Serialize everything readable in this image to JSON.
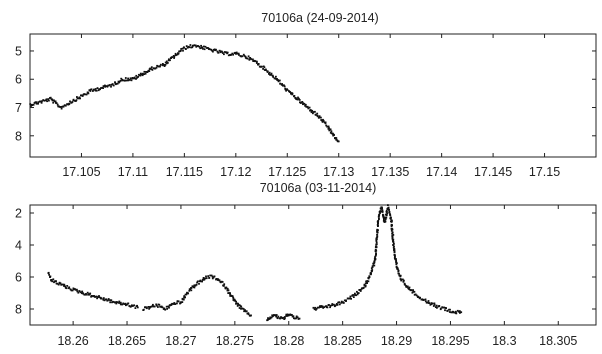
{
  "chart_data": [
    {
      "type": "scatter",
      "title": "70106a (24-09-2014)",
      "xlabel": "",
      "ylabel": "",
      "xlim": [
        17.1,
        17.155
      ],
      "ylim": [
        4.4,
        8.75
      ],
      "y_inverted": true,
      "x_ticks": [
        "17.105",
        "17.11",
        "17.115",
        "17.12",
        "17.125",
        "17.13",
        "17.135",
        "17.14",
        "17.145",
        "17.15"
      ],
      "x_tick_values": [
        17.105,
        17.11,
        17.115,
        17.12,
        17.125,
        17.13,
        17.135,
        17.14,
        17.145,
        17.15
      ],
      "y_ticks": [
        "5",
        "6",
        "7",
        "8"
      ],
      "y_tick_values": [
        5,
        6,
        7,
        8
      ],
      "grid": false,
      "marker_color": "#111111",
      "series": [
        {
          "x": [
            17.1,
            17.101,
            17.102,
            17.103,
            17.104,
            17.105,
            17.106,
            17.107,
            17.108,
            17.109,
            17.11,
            17.111,
            17.112,
            17.113,
            17.114,
            17.115,
            17.116,
            17.117,
            17.118,
            17.119,
            17.12,
            17.121,
            17.122,
            17.123,
            17.124,
            17.125,
            17.126,
            17.127,
            17.128,
            17.129,
            17.1295,
            17.13
          ],
          "y": [
            6.9,
            6.8,
            6.7,
            7.0,
            6.8,
            6.6,
            6.4,
            6.3,
            6.2,
            6.0,
            6.0,
            5.8,
            5.6,
            5.5,
            5.2,
            4.9,
            4.8,
            4.9,
            5.0,
            5.1,
            5.1,
            5.2,
            5.4,
            5.7,
            6.0,
            6.4,
            6.7,
            7.0,
            7.3,
            7.7,
            8.0,
            8.2
          ]
        }
      ]
    },
    {
      "type": "scatter",
      "title": "70106a (03-11-2014)",
      "xlabel": "",
      "ylabel": "",
      "xlim": [
        18.256,
        18.3085
      ],
      "ylim": [
        1.5,
        9.0
      ],
      "y_inverted": true,
      "x_ticks": [
        "18.26",
        "18.265",
        "18.27",
        "18.275",
        "18.28",
        "18.285",
        "18.29",
        "18.295",
        "18.3",
        "18.305"
      ],
      "x_tick_values": [
        18.26,
        18.265,
        18.27,
        18.275,
        18.28,
        18.285,
        18.29,
        18.295,
        18.3,
        18.305
      ],
      "y_ticks": [
        "2",
        "4",
        "6",
        "8"
      ],
      "y_tick_values": [
        2,
        4,
        6,
        8
      ],
      "grid": false,
      "marker_color": "#111111",
      "series": [
        {
          "x": [
            18.2577,
            18.258,
            18.259,
            18.26,
            18.261,
            18.262,
            18.263,
            18.264,
            18.265,
            18.266
          ],
          "y": [
            5.8,
            6.2,
            6.5,
            6.8,
            7.0,
            7.2,
            7.4,
            7.6,
            7.7,
            7.9
          ]
        },
        {
          "x": [
            18.2665,
            18.267,
            18.2675,
            18.268,
            18.2685,
            18.269,
            18.2695,
            18.27,
            18.2705,
            18.271,
            18.2715,
            18.272,
            18.2725,
            18.273,
            18.2735,
            18.274,
            18.2745,
            18.275,
            18.2755,
            18.276,
            18.2765
          ],
          "y": [
            8.0,
            7.9,
            7.8,
            7.8,
            8.0,
            7.8,
            7.6,
            7.6,
            7.1,
            6.7,
            6.4,
            6.2,
            6.0,
            6.0,
            6.2,
            6.5,
            7.0,
            7.5,
            7.9,
            8.2,
            8.4
          ]
        },
        {
          "x": [
            18.278,
            18.2785,
            18.279,
            18.2795,
            18.28,
            18.2805,
            18.281
          ],
          "y": [
            8.7,
            8.4,
            8.5,
            8.6,
            8.3,
            8.5,
            8.6
          ]
        },
        {
          "x": [
            18.2823,
            18.283,
            18.284,
            18.285,
            18.286,
            18.287,
            18.2875,
            18.288,
            18.2883,
            18.2886,
            18.2889,
            18.2892,
            18.2895,
            18.2898,
            18.2901,
            18.2905,
            18.291,
            18.292,
            18.293,
            18.294,
            18.295,
            18.2955,
            18.296
          ],
          "y": [
            8.0,
            7.9,
            7.8,
            7.6,
            7.2,
            6.6,
            6.0,
            5.0,
            2.5,
            1.6,
            2.6,
            1.6,
            2.4,
            4.5,
            5.6,
            6.2,
            6.6,
            7.2,
            7.6,
            7.9,
            8.1,
            8.2,
            8.2
          ]
        }
      ]
    }
  ]
}
